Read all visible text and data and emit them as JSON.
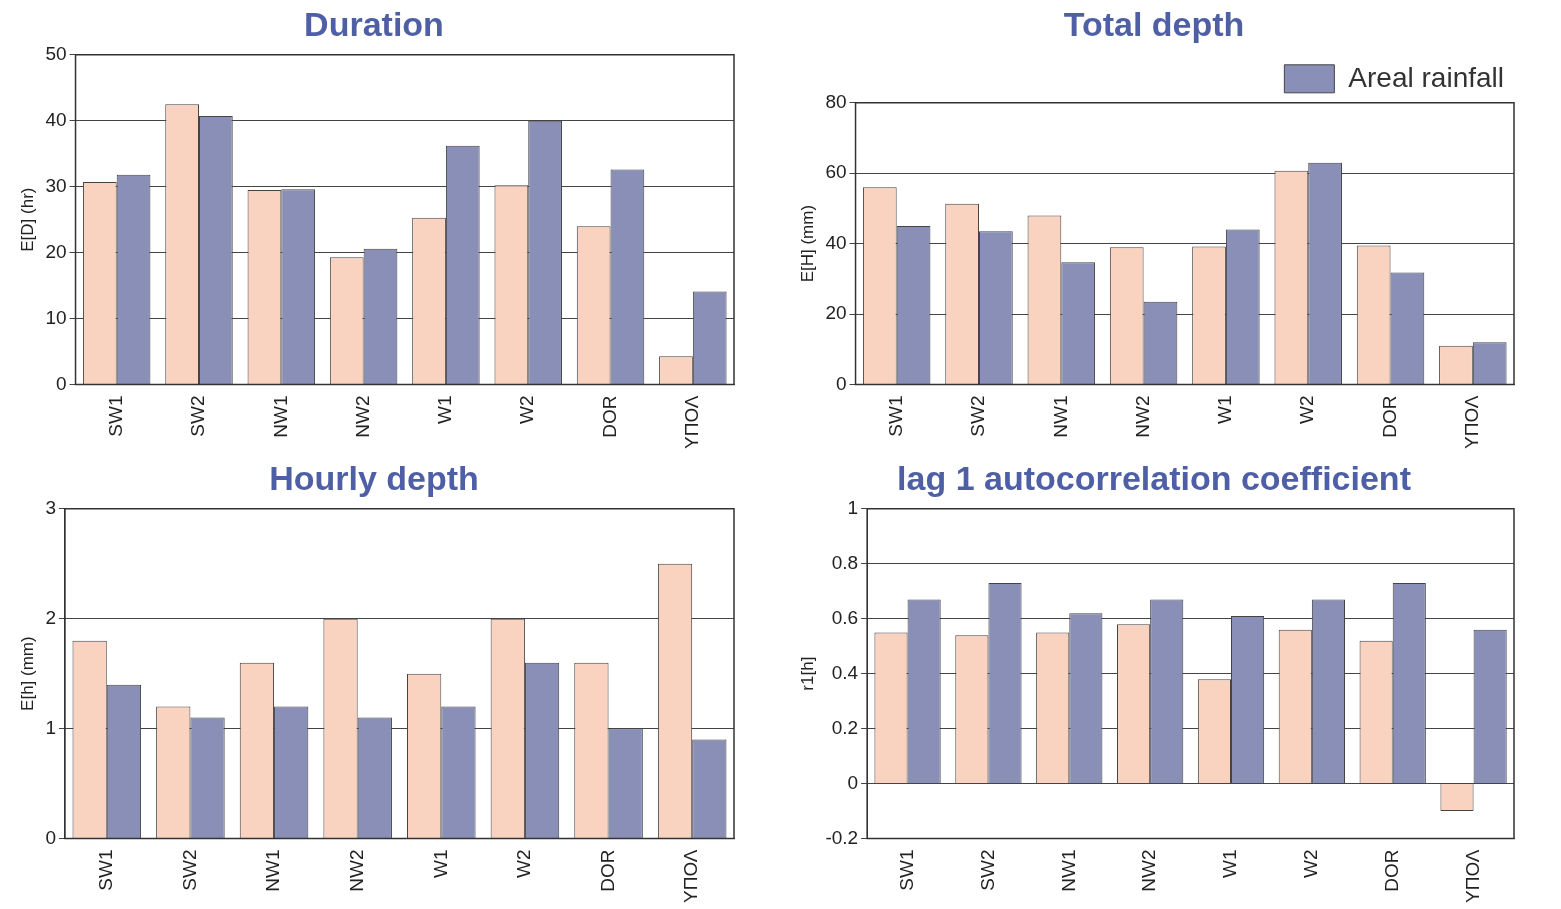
{
  "chart_data": [
    {
      "type": "bar",
      "title": "Duration",
      "ylabel": "E[D] (hr)",
      "categories": [
        "SW1",
        "SW2",
        "NW1",
        "NW2",
        "W1",
        "W2",
        "DOR",
        "ΥΠΟΛ"
      ],
      "series": [
        {
          "color": "#f9d3c0",
          "values": [
            30.7,
            42.5,
            29.5,
            19.3,
            25.3,
            30.2,
            24,
            4.3
          ]
        },
        {
          "color": "#8a8fb8",
          "values": [
            31.8,
            40.7,
            29.6,
            20.6,
            36.2,
            40,
            32.6,
            14.1
          ]
        }
      ],
      "ylim": [
        0,
        50
      ],
      "yticks": [
        0,
        10,
        20,
        30,
        40,
        50
      ],
      "grid": "y",
      "legend": false
    },
    {
      "type": "bar",
      "title": "Total depth",
      "ylabel": "E[H] (mm)",
      "categories": [
        "SW1",
        "SW2",
        "NW1",
        "NW2",
        "W1",
        "W2",
        "DOR",
        "ΥΠΟΛ"
      ],
      "series": [
        {
          "color": "#f9d3c0",
          "values": [
            56,
            51.3,
            48,
            39,
            39.2,
            60.7,
            39.5,
            11
          ]
        },
        {
          "name": "Areal rainfall",
          "color": "#8a8fb8",
          "values": [
            45,
            43.5,
            34.7,
            23.5,
            44,
            63,
            31.8,
            12
          ]
        }
      ],
      "ylim": [
        0,
        80
      ],
      "yticks": [
        0,
        20,
        40,
        60,
        80
      ],
      "grid": "y",
      "legend": "top right"
    },
    {
      "type": "bar",
      "title": "Hourly depth",
      "ylabel": "E[h] (mm)",
      "categories": [
        "SW1",
        "SW2",
        "NW1",
        "NW2",
        "W1",
        "W2",
        "DOR",
        "ΥΠΟΛ"
      ],
      "series": [
        {
          "color": "#f9d3c0",
          "values": [
            1.8,
            1.2,
            1.6,
            2.0,
            1.5,
            2.0,
            1.6,
            2.5
          ]
        },
        {
          "color": "#8a8fb8",
          "values": [
            1.4,
            1.1,
            1.2,
            1.1,
            1.2,
            1.6,
            1.0,
            0.9
          ]
        }
      ],
      "ylim": [
        0,
        3
      ],
      "yticks": [
        0,
        1,
        2,
        3
      ],
      "grid": "y",
      "legend": false
    },
    {
      "type": "bar",
      "title": "lag 1 autocorrelation coefficient",
      "ylabel": "r1[h]",
      "categories": [
        "SW1",
        "SW2",
        "NW1",
        "NW2",
        "W1",
        "W2",
        "DOR",
        "ΥΠΟΛ"
      ],
      "series": [
        {
          "color": "#f9d3c0",
          "values": [
            0.55,
            0.54,
            0.55,
            0.58,
            0.38,
            0.56,
            0.52,
            -0.1
          ]
        },
        {
          "color": "#8a8fb8",
          "values": [
            0.67,
            0.73,
            0.62,
            0.67,
            0.61,
            0.67,
            0.73,
            0.56
          ]
        }
      ],
      "ylim": [
        -0.2,
        1
      ],
      "yticks": [
        -0.2,
        0,
        0.2,
        0.4,
        0.6,
        0.8,
        1
      ],
      "grid": "y",
      "legend": false
    }
  ]
}
